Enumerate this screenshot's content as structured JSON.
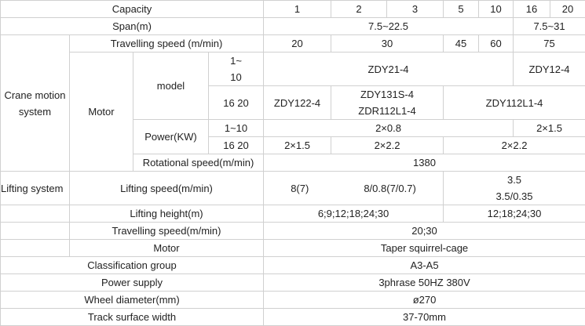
{
  "capacity": {
    "label": "Capacity",
    "values": [
      "1",
      "2",
      "3",
      "5",
      "10",
      "16",
      "20"
    ]
  },
  "span": {
    "label": "Span(m)",
    "values": [
      "7.5~22.5",
      "7.5~31"
    ]
  },
  "crane_motion": {
    "label": "Crane motion system",
    "travelling_speed": {
      "label": "Travelling speed (m/min)",
      "values": [
        "20",
        "30",
        "45",
        "60",
        "75"
      ]
    },
    "motor": {
      "label": "Motor",
      "model": {
        "label": "model",
        "rows": [
          {
            "capacity_line1": "1~",
            "capacity_line2": "10",
            "values": [
              "ZDY21-4",
              "ZDY12-4"
            ]
          },
          {
            "capacity": "16 20",
            "values": [
              "ZDY122-4",
              "ZDY131S-4",
              "ZDR112L1-4",
              "ZDY112L1-4"
            ]
          }
        ]
      },
      "power": {
        "label": "Power(KW)",
        "rows": [
          {
            "capacity": "1~10",
            "values": [
              "2×0.8",
              "2×1.5"
            ]
          },
          {
            "capacity": "16 20",
            "values": [
              "2×1.5",
              "2×2.2",
              "2×2.2"
            ]
          }
        ]
      },
      "rotational_speed": {
        "label": "Rotational speed(m/min)",
        "value": "1380"
      }
    }
  },
  "lifting": {
    "label": "Lifting system",
    "lifting_speed": {
      "label": "Lifting speed(m/min)",
      "values": [
        "8(7)",
        "8/0.8(7/0.7)",
        "3.5",
        "3.5/0.35"
      ]
    },
    "lifting_height": {
      "label": "Lifting height(m)",
      "values": [
        "6;9;12;18;24;30",
        "12;18;24;30"
      ]
    },
    "travelling_speed": {
      "label": "Travelling speed(m/min)",
      "value": "20;30"
    },
    "motor": {
      "label": "Motor",
      "value": "Taper squirrel-cage"
    }
  },
  "classification": {
    "label": "Classification group",
    "value": "A3-A5"
  },
  "power_supply": {
    "label": "Power supply",
    "value": "3phrase 50HZ 380V"
  },
  "wheel_diameter": {
    "label": "Wheel diameter(mm)",
    "value": "ø270"
  },
  "track_width": {
    "label": "Track surface width",
    "value": "37-70mm"
  }
}
